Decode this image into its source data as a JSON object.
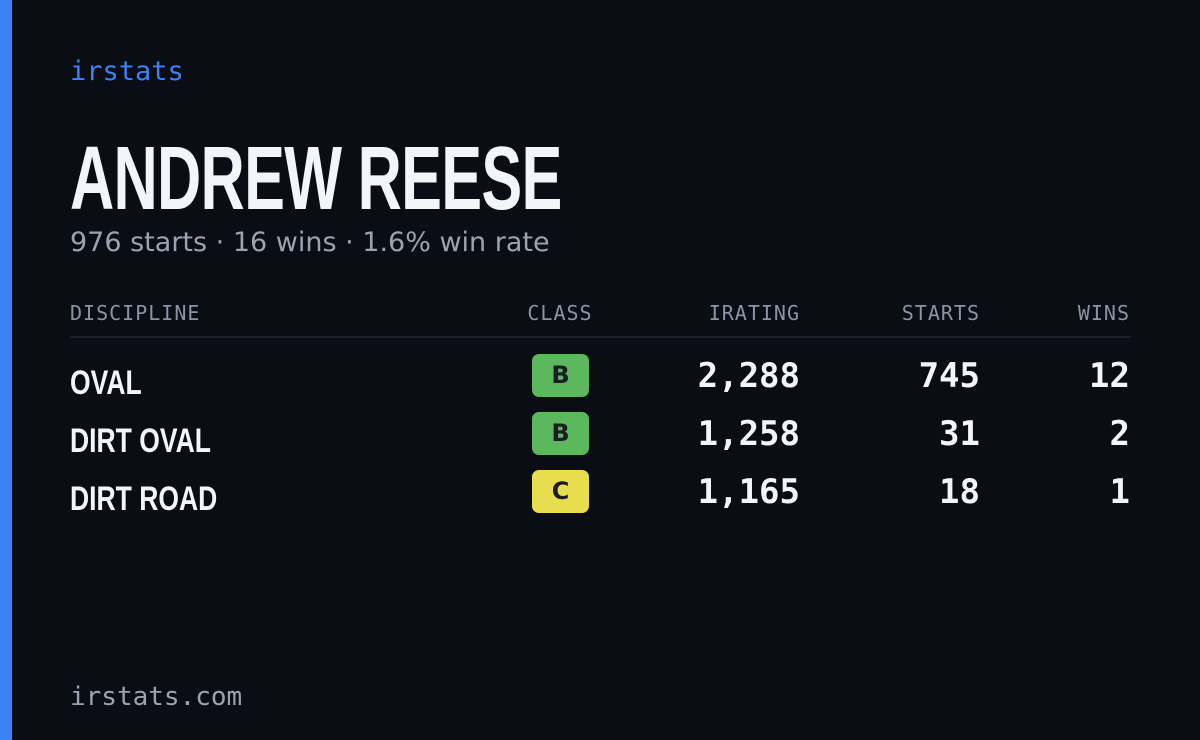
{
  "header": {
    "brand": "irstats",
    "name": "ANDREW REESE",
    "summary": "976 starts · 16 wins · 1.6% win rate"
  },
  "table": {
    "columns": [
      "DISCIPLINE",
      "CLASS",
      "IRATING",
      "STARTS",
      "WINS"
    ],
    "rows": [
      {
        "discipline": "OVAL",
        "class": "B",
        "class_color": "#5cb85c",
        "irating": "2,288",
        "starts": "745",
        "wins": "12"
      },
      {
        "discipline": "DIRT OVAL",
        "class": "B",
        "class_color": "#5cb85c",
        "irating": "1,258",
        "starts": "31",
        "wins": "2"
      },
      {
        "discipline": "DIRT ROAD",
        "class": "C",
        "class_color": "#e8dd4c",
        "irating": "1,165",
        "starts": "18",
        "wins": "1"
      }
    ]
  },
  "footer": {
    "site": "irstats.com"
  }
}
